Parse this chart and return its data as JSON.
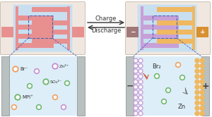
{
  "bg_color": "#f0e8e0",
  "electrolyte_color": "#c8dff0",
  "electrode_color": "#b8c0c0",
  "left_tab_color": "#e89090",
  "right_interdigitated_color_purple": "#c8a0d8",
  "right_interdigitated_color_orange": "#f0b860",
  "br_layer_color": "#c8a0d8",
  "zn_layer_color": "#f0b860",
  "arrow_color": "#333333",
  "charge_text": "Charge",
  "discharge_text": "Discharge",
  "minus_label": "−",
  "plus_label": "+",
  "br2_label": "Br₂",
  "zn_label": "Zn",
  "br_ion_label": "Br⁻",
  "zn_ion_label": "Zn²⁺",
  "so4_ion_label": "SO₄²⁻",
  "mpi_ion_label": "MPI⁺",
  "br_ion_color": "#f0a060",
  "zn_ion_color": "#c890d0",
  "so4_ion_color": "#70b870",
  "green_ion_color": "#70b870",
  "orange_ion_color": "#f0a060",
  "purple_ion_color": "#c890d0",
  "inner_electrolyte_color": "#ddeef8"
}
